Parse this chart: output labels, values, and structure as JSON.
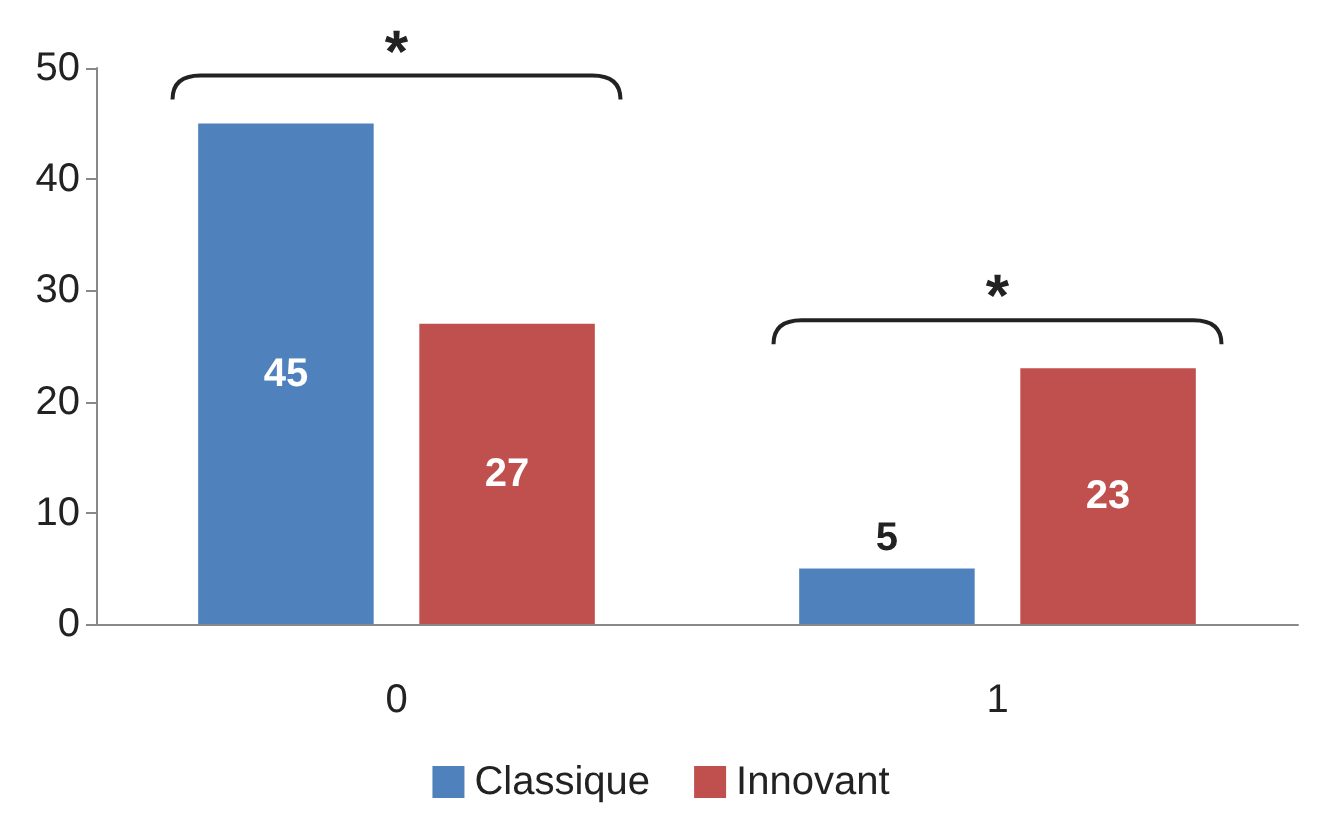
{
  "chart_data": {
    "type": "bar",
    "categories": [
      "0",
      "1"
    ],
    "series": [
      {
        "name": "Classique",
        "color": "#4f81bd",
        "values": [
          45,
          5
        ]
      },
      {
        "name": "Innovant",
        "color": "#c0504d",
        "values": [
          27,
          23
        ]
      }
    ],
    "ylim": [
      0,
      50
    ],
    "yticks": [
      0,
      10,
      20,
      30,
      40,
      50
    ],
    "grid": false,
    "legend": "bottom",
    "data_labels": true,
    "annotations": [
      "*",
      "*"
    ]
  }
}
